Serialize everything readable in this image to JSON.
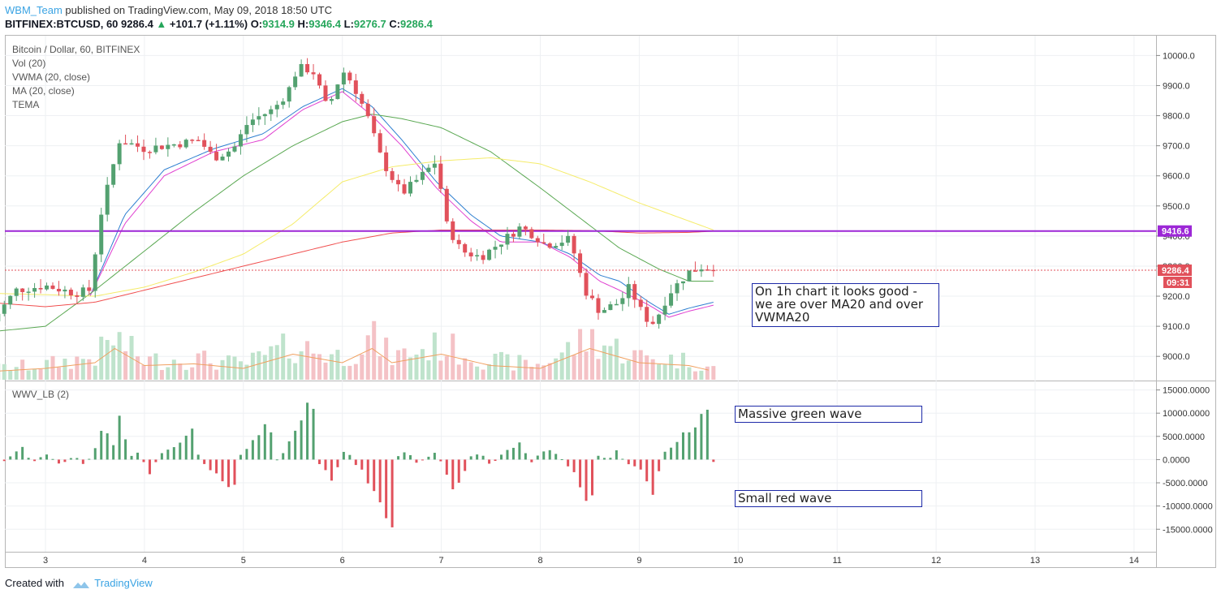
{
  "header": {
    "author": "WBM_Team",
    "published": "published on TradingView.com, May 09, 2018 18:50 UTC",
    "symbol": "BITFINEX:BTCUSD, 60",
    "last": "9286.4",
    "change": "+101.7 (+1.11%)",
    "o_label": "O:",
    "o": "9314.9",
    "h_label": "H:",
    "h": "9346.4",
    "l_label": "L:",
    "l": "9276.7",
    "c_label": "C:",
    "c": "9286.4"
  },
  "legend": [
    "Bitcoin / Dollar, 60, BITFINEX",
    "Vol (20)",
    "VWMA (20, close)",
    "MA (20, close)",
    "TEMA"
  ],
  "indicator_label": "WWV_LB (2)",
  "price_tags": {
    "level": "9416.6",
    "last": "9286.4",
    "countdown": "09:31"
  },
  "notes": {
    "main": [
      "On 1h chart it looks good -",
      "we are over MA20 and over",
      "VWMA20"
    ],
    "green": "Massive green wave",
    "red": "Small red wave"
  },
  "footer": {
    "created": "Created with",
    "brand": "TradingView"
  },
  "colors": {
    "up": "#53a170",
    "down": "#e1515b",
    "level_line": "#9c27d6",
    "vwma": "#2e7fd0",
    "ma": "#e040d0",
    "ma_green": "#5aa852",
    "tema_yellow": "#f5ec6a",
    "ma_red": "#f05050",
    "accent": "#3aa3e3"
  },
  "chart_data": [
    {
      "type": "candlestick",
      "title": "Bitcoin / Dollar, 60, BITFINEX",
      "x_ticks": [
        "3",
        "4",
        "5",
        "6",
        "7",
        "8",
        "9",
        "10",
        "11",
        "12",
        "13",
        "14"
      ],
      "y_ticks": [
        "10000.0",
        "9900.0",
        "9800.0",
        "9700.0",
        "9600.0",
        "9500.0",
        "9400.0",
        "9300.0",
        "9200.0",
        "9100.0",
        "9000.0"
      ],
      "ylim": [
        8925,
        10055
      ],
      "horizontal_line": 9416.6,
      "last_price": 9286.4,
      "close_anchors": [
        [
          2.4,
          9090
        ],
        [
          2.7,
          9220
        ],
        [
          3.0,
          9235
        ],
        [
          3.3,
          9210
        ],
        [
          3.45,
          9220
        ],
        [
          3.55,
          9460
        ],
        [
          3.75,
          9720
        ],
        [
          4.0,
          9690
        ],
        [
          4.2,
          9700
        ],
        [
          4.4,
          9710
        ],
        [
          4.55,
          9720
        ],
        [
          4.7,
          9660
        ],
        [
          4.9,
          9690
        ],
        [
          5.05,
          9780
        ],
        [
          5.3,
          9820
        ],
        [
          5.45,
          9880
        ],
        [
          5.55,
          9960
        ],
        [
          5.7,
          9950
        ],
        [
          5.85,
          9820
        ],
        [
          6.0,
          9950
        ],
        [
          6.1,
          9910
        ],
        [
          6.25,
          9800
        ],
        [
          6.4,
          9650
        ],
        [
          6.6,
          9540
        ],
        [
          6.8,
          9600
        ],
        [
          6.95,
          9650
        ],
        [
          7.05,
          9440
        ],
        [
          7.2,
          9350
        ],
        [
          7.4,
          9330
        ],
        [
          7.6,
          9380
        ],
        [
          7.8,
          9430
        ],
        [
          7.95,
          9400
        ],
        [
          8.05,
          9370
        ],
        [
          8.3,
          9390
        ],
        [
          8.45,
          9220
        ],
        [
          8.6,
          9150
        ],
        [
          8.8,
          9180
        ],
        [
          8.9,
          9230
        ],
        [
          9.05,
          9130
        ],
        [
          9.15,
          9110
        ],
        [
          9.3,
          9210
        ],
        [
          9.5,
          9280
        ],
        [
          9.65,
          9300
        ],
        [
          9.75,
          9286.4
        ]
      ],
      "volume_anchors": [
        [
          2.5,
          0.15
        ],
        [
          3.0,
          0.2
        ],
        [
          3.5,
          0.3
        ],
        [
          3.7,
          0.55
        ],
        [
          4.0,
          0.25
        ],
        [
          4.5,
          0.28
        ],
        [
          5.0,
          0.2
        ],
        [
          5.5,
          0.45
        ],
        [
          6.0,
          0.3
        ],
        [
          6.3,
          0.55
        ],
        [
          6.5,
          0.3
        ],
        [
          7.0,
          0.45
        ],
        [
          7.5,
          0.25
        ],
        [
          8.0,
          0.2
        ],
        [
          8.5,
          0.55
        ],
        [
          9.0,
          0.3
        ],
        [
          9.5,
          0.25
        ],
        [
          9.75,
          0.15
        ]
      ],
      "series": [
        {
          "name": "VWMA (20, close)",
          "color": "#2e7fd0",
          "anchors": [
            [
              3.45,
              9200
            ],
            [
              3.8,
              9470
            ],
            [
              4.2,
              9620
            ],
            [
              4.7,
              9690
            ],
            [
              5.2,
              9740
            ],
            [
              5.6,
              9830
            ],
            [
              6.0,
              9890
            ],
            [
              6.3,
              9830
            ],
            [
              6.6,
              9720
            ],
            [
              6.95,
              9580
            ],
            [
              7.3,
              9470
            ],
            [
              7.6,
              9400
            ],
            [
              8.0,
              9380
            ],
            [
              8.3,
              9340
            ],
            [
              8.6,
              9270
            ],
            [
              8.8,
              9250
            ],
            [
              9.1,
              9180
            ],
            [
              9.3,
              9140
            ],
            [
              9.5,
              9160
            ],
            [
              9.75,
              9180
            ]
          ]
        },
        {
          "name": "MA (20, close)",
          "color": "#e040d0",
          "anchors": [
            [
              3.45,
              9200
            ],
            [
              3.8,
              9440
            ],
            [
              4.2,
              9600
            ],
            [
              4.7,
              9680
            ],
            [
              5.2,
              9720
            ],
            [
              5.6,
              9820
            ],
            [
              6.0,
              9880
            ],
            [
              6.3,
              9800
            ],
            [
              6.6,
              9700
            ],
            [
              6.95,
              9560
            ],
            [
              7.3,
              9450
            ],
            [
              7.6,
              9380
            ],
            [
              8.0,
              9380
            ],
            [
              8.3,
              9330
            ],
            [
              8.6,
              9250
            ],
            [
              8.8,
              9220
            ],
            [
              9.1,
              9170
            ],
            [
              9.3,
              9130
            ],
            [
              9.5,
              9150
            ],
            [
              9.75,
              9170
            ]
          ]
        },
        {
          "color": "#5aa852",
          "anchors": [
            [
              2.4,
              9080
            ],
            [
              3.0,
              9100
            ],
            [
              3.5,
              9220
            ],
            [
              4.0,
              9350
            ],
            [
              4.5,
              9480
            ],
            [
              5.0,
              9600
            ],
            [
              5.5,
              9700
            ],
            [
              6.0,
              9780
            ],
            [
              6.3,
              9805
            ],
            [
              6.6,
              9790
            ],
            [
              7.0,
              9760
            ],
            [
              7.5,
              9680
            ],
            [
              8.0,
              9560
            ],
            [
              8.4,
              9460
            ],
            [
              8.8,
              9360
            ],
            [
              9.2,
              9290
            ],
            [
              9.5,
              9250
            ],
            [
              9.75,
              9250
            ]
          ]
        },
        {
          "color": "#f5ec6a",
          "anchors": [
            [
              2.4,
              9210
            ],
            [
              3.0,
              9205
            ],
            [
              3.5,
              9200
            ],
            [
              4.0,
              9230
            ],
            [
              4.5,
              9280
            ],
            [
              5.0,
              9340
            ],
            [
              5.5,
              9440
            ],
            [
              6.0,
              9580
            ],
            [
              6.5,
              9630
            ],
            [
              7.0,
              9650
            ],
            [
              7.5,
              9660
            ],
            [
              8.0,
              9640
            ],
            [
              8.5,
              9580
            ],
            [
              9.0,
              9510
            ],
            [
              9.5,
              9450
            ],
            [
              9.75,
              9420
            ]
          ]
        },
        {
          "color": "#f05050",
          "anchors": [
            [
              2.4,
              9180
            ],
            [
              3.0,
              9165
            ],
            [
              3.5,
              9180
            ],
            [
              4.0,
              9220
            ],
            [
              4.5,
              9260
            ],
            [
              5.0,
              9300
            ],
            [
              5.5,
              9340
            ],
            [
              6.0,
              9380
            ],
            [
              6.5,
              9410
            ],
            [
              7.0,
              9420
            ],
            [
              7.5,
              9420
            ],
            [
              8.0,
              9420
            ],
            [
              8.5,
              9418
            ],
            [
              9.0,
              9410
            ],
            [
              9.5,
              9412
            ],
            [
              9.75,
              9416
            ]
          ]
        }
      ]
    },
    {
      "type": "bar",
      "title": "WWV_LB (2)",
      "y_ticks": [
        "15000.0000",
        "10000.0000",
        "5000.0000",
        "0.0000",
        "-5000.0000",
        "-10000.0000",
        "-15000.0000"
      ],
      "ylim": [
        -19500,
        16500
      ],
      "last_value": -500,
      "anchors": [
        [
          2.4,
          800
        ],
        [
          2.55,
          -800
        ],
        [
          2.7,
          1500
        ],
        [
          2.78,
          3500
        ],
        [
          2.85,
          -900
        ],
        [
          3.0,
          1200
        ],
        [
          3.15,
          -1000
        ],
        [
          3.3,
          800
        ],
        [
          3.4,
          -1500
        ],
        [
          3.5,
          2500
        ],
        [
          3.6,
          7500
        ],
        [
          3.68,
          2500
        ],
        [
          3.75,
          10500
        ],
        [
          3.85,
          500
        ],
        [
          3.95,
          1500
        ],
        [
          4.05,
          -3500
        ],
        [
          4.15,
          1000
        ],
        [
          4.3,
          2500
        ],
        [
          4.4,
          5000
        ],
        [
          4.48,
          6500
        ],
        [
          4.55,
          500
        ],
        [
          4.65,
          -2000
        ],
        [
          4.75,
          -3500
        ],
        [
          4.9,
          -6500
        ],
        [
          4.95,
          500
        ],
        [
          5.05,
          2500
        ],
        [
          5.15,
          6000
        ],
        [
          5.25,
          7500
        ],
        [
          5.35,
          -800
        ],
        [
          5.45,
          3500
        ],
        [
          5.55,
          7500
        ],
        [
          5.65,
          13000
        ],
        [
          5.7,
          14000
        ],
        [
          5.75,
          -600
        ],
        [
          5.85,
          -3000
        ],
        [
          5.9,
          -5500
        ],
        [
          6.0,
          1500
        ],
        [
          6.05,
          2500
        ],
        [
          6.1,
          -500
        ],
        [
          6.2,
          -2500
        ],
        [
          6.3,
          -6500
        ],
        [
          6.4,
          -11500
        ],
        [
          6.45,
          -14500
        ],
        [
          6.5,
          -18000
        ],
        [
          6.55,
          500
        ],
        [
          6.65,
          2000
        ],
        [
          6.75,
          -800
        ],
        [
          6.85,
          300
        ],
        [
          6.95,
          1500
        ],
        [
          7.02,
          -1500
        ],
        [
          7.1,
          -5500
        ],
        [
          7.15,
          -7500
        ],
        [
          7.2,
          -4000
        ],
        [
          7.3,
          700
        ],
        [
          7.4,
          1500
        ],
        [
          7.5,
          -1500
        ],
        [
          7.58,
          600
        ],
        [
          7.7,
          2500
        ],
        [
          7.8,
          3500
        ],
        [
          7.9,
          -800
        ],
        [
          8.0,
          1500
        ],
        [
          8.1,
          2000
        ],
        [
          8.2,
          500
        ],
        [
          8.35,
          -3000
        ],
        [
          8.45,
          -7500
        ],
        [
          8.5,
          -10500
        ],
        [
          8.6,
          2500
        ],
        [
          8.68,
          -1000
        ],
        [
          8.75,
          2500
        ],
        [
          8.85,
          -400
        ],
        [
          8.95,
          -1500
        ],
        [
          9.05,
          -3000
        ],
        [
          9.1,
          -5500
        ],
        [
          9.15,
          -9000
        ],
        [
          9.22,
          500
        ],
        [
          9.3,
          2500
        ],
        [
          9.4,
          4500
        ],
        [
          9.5,
          6500
        ],
        [
          9.6,
          8500
        ],
        [
          9.7,
          10000
        ],
        [
          9.74,
          -500
        ]
      ]
    }
  ]
}
